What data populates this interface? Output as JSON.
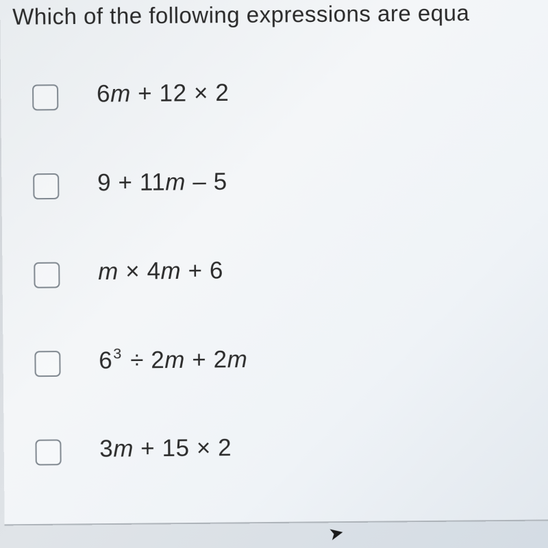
{
  "question_text": "Which of the following expressions are equa",
  "options": [
    {
      "before": "6",
      "var": "m",
      "after": " + 12 × 2",
      "has_exp": false
    },
    {
      "before": "9 + 11",
      "var": "m",
      "after": " – 5",
      "has_exp": false
    },
    {
      "before": "",
      "var": "m",
      "mid": " × 4",
      "var2": "m",
      "after": " + 6",
      "two_var": true
    },
    {
      "base": "6",
      "exp": "3",
      "div_before": " ÷ 2",
      "var": "m",
      "mid2": " + 2",
      "var2": "m",
      "has_exp": true
    },
    {
      "before": "3",
      "var": "m",
      "after": " + 15 × 2",
      "has_exp": false
    }
  ],
  "colors": {
    "text": "#2c2c2c",
    "checkbox_border": "#808890",
    "panel_bg_light": "#f4f6f8"
  }
}
